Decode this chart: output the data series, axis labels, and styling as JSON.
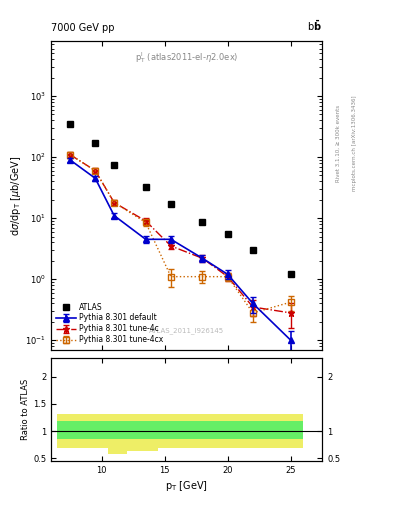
{
  "atlas_x": [
    7.5,
    9.5,
    11.0,
    13.5,
    15.5,
    18.0,
    20.0,
    22.0,
    25.0
  ],
  "atlas_y": [
    350,
    170,
    75,
    32,
    17,
    8.5,
    5.5,
    3.0,
    1.2
  ],
  "pythia_default_x": [
    7.5,
    9.5,
    11.0,
    13.5,
    15.5,
    18.0,
    20.0,
    22.0,
    25.0
  ],
  "pythia_default_y": [
    90,
    45,
    11,
    4.5,
    4.5,
    2.2,
    1.2,
    0.4,
    0.1
  ],
  "pythia_default_yerr": [
    8,
    4,
    1.0,
    0.6,
    0.6,
    0.3,
    0.2,
    0.12,
    0.04
  ],
  "pythia_4c_x": [
    7.5,
    9.5,
    11.0,
    13.5,
    15.5,
    18.0,
    20.0,
    22.0,
    25.0
  ],
  "pythia_4c_y": [
    110,
    60,
    18,
    9.0,
    3.5,
    2.2,
    1.1,
    0.35,
    0.28
  ],
  "pythia_4c_yerr": [
    12,
    6,
    1.8,
    1.0,
    0.4,
    0.3,
    0.15,
    0.1,
    0.12
  ],
  "pythia_4cx_x": [
    7.5,
    9.5,
    11.0,
    13.5,
    15.5,
    18.0,
    20.0,
    22.0,
    25.0
  ],
  "pythia_4cx_y": [
    110,
    60,
    18,
    8.5,
    1.1,
    1.1,
    1.1,
    0.28,
    0.42
  ],
  "pythia_4cx_yerr": [
    12,
    6,
    1.8,
    1.0,
    0.35,
    0.25,
    0.15,
    0.08,
    0.12
  ],
  "ratio_xedges": [
    6.5,
    8.5,
    10.5,
    12.0,
    14.5,
    16.5,
    19.0,
    21.0,
    23.0,
    26.0
  ],
  "ratio_green_lo": [
    0.85,
    0.85,
    0.85,
    0.85,
    0.85,
    0.85,
    0.85,
    0.85,
    0.85
  ],
  "ratio_green_hi": [
    1.18,
    1.18,
    1.18,
    1.18,
    1.18,
    1.18,
    1.18,
    1.18,
    1.18
  ],
  "ratio_yellow_lo": [
    0.68,
    0.68,
    0.58,
    0.63,
    0.68,
    0.68,
    0.68,
    0.68,
    0.68
  ],
  "ratio_yellow_hi": [
    1.32,
    1.32,
    1.32,
    1.32,
    1.32,
    1.32,
    1.32,
    1.32,
    1.32
  ],
  "color_default": "#0000cc",
  "color_4c": "#cc0000",
  "color_4cx": "#cc6600",
  "color_atlas": "#000000",
  "xlim": [
    6.0,
    27.5
  ],
  "ylim_main": [
    0.07,
    8000
  ],
  "ylim_ratio": [
    0.45,
    2.35
  ],
  "xticks": [
    10,
    15,
    20,
    25
  ],
  "background_color": "#ffffff"
}
